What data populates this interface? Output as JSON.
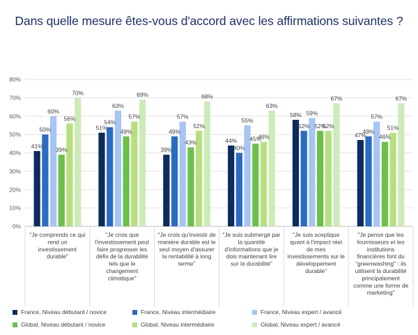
{
  "chart_data": {
    "type": "bar",
    "title": "Dans quelle mesure êtes-vous d'accord avec les affirmations suivantes ?",
    "ylim": [
      0,
      80
    ],
    "yticks": [
      "0%",
      "10%",
      "20%",
      "30%",
      "40%",
      "50%",
      "60%",
      "70%",
      "80%"
    ],
    "grid": true,
    "legend_position": "bottom",
    "categories": [
      [
        "\"Je comprends ce qui",
        "rend un",
        "investissement",
        "durable\""
      ],
      [
        "\"Je crois que",
        "l'investissement peut",
        "faire progresser les",
        "défis de la durabilité",
        "tels que le",
        "changement",
        "climatique\""
      ],
      [
        "\"Je crois qu'investir de",
        "manière durable est le",
        "seul moyen d'assurer",
        "la rentabilité à long",
        "terme\""
      ],
      [
        "\"Je suis submergé par",
        "la quantité",
        "d'informations que je",
        "dois maintenant lire",
        "sur la durabilité\""
      ],
      [
        "\"Je suis sceptique",
        "quant à l'impact réel",
        "de mes",
        "investissements sur le",
        "développement",
        "durable\""
      ],
      [
        "\"Je pense que les",
        "fournisseurs et les",
        "institutions",
        "financières font du",
        "\"greenwashing\" : ils",
        "utilisent la durabilité",
        "principalement",
        "comme une forme de",
        "marketing\""
      ]
    ],
    "series": [
      {
        "name": "France, Niveau débutant / novice",
        "color": "#0d2b5e",
        "values": [
          41,
          51,
          39,
          44,
          58,
          47
        ]
      },
      {
        "name": "France, Niveau intermédiaire",
        "color": "#2a6bc4",
        "values": [
          50,
          54,
          49,
          40,
          52,
          49
        ]
      },
      {
        "name": "France, Niveau expert / avancé",
        "color": "#a6c5f2",
        "values": [
          60,
          63,
          57,
          55,
          59,
          57
        ]
      },
      {
        "name": "Global, Niveau débutant / novice",
        "color": "#6cc04a",
        "values": [
          39,
          49,
          43,
          45,
          52,
          46
        ]
      },
      {
        "name": "Global, Niveau intermédiaire",
        "color": "#b6e07e",
        "values": [
          56,
          57,
          52,
          46,
          52,
          51
        ]
      },
      {
        "name": "Global, Niveau expert / avancé",
        "color": "#cdebb8",
        "values": [
          70,
          69,
          68,
          63,
          67,
          67
        ]
      }
    ],
    "value_suffix": "%"
  }
}
